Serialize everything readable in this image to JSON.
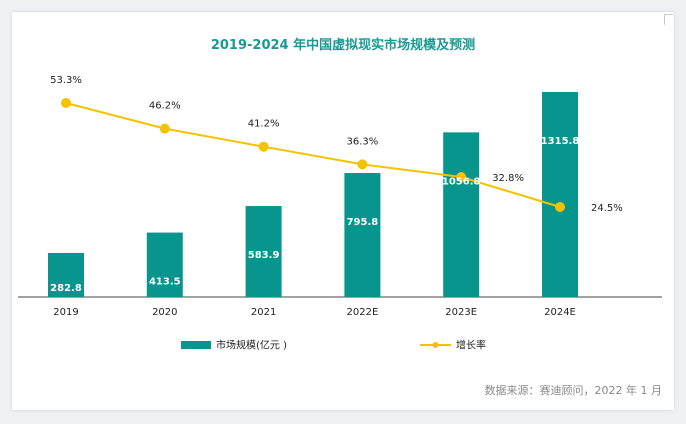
{
  "chart_data": {
    "type": "bar",
    "title": "2019-2024 年中国虚拟现实市场规模及预测",
    "categories": [
      "2019",
      "2020",
      "2021",
      "2022E",
      "2023E",
      "2024E"
    ],
    "series": [
      {
        "name": "市场规模(亿元 )",
        "type": "bar",
        "color": "#07958d",
        "values": [
          282.8,
          413.5,
          583.9,
          795.8,
          1056.8,
          1315.8
        ],
        "labels": [
          "282.8",
          "413.5",
          "583.9",
          "795.8",
          "1056.8",
          "1315.8"
        ]
      },
      {
        "name": "增长率",
        "type": "line",
        "color": "#f3c200",
        "values": [
          53.3,
          46.2,
          41.2,
          36.3,
          32.8,
          24.5
        ],
        "labels": [
          "53.3%",
          "46.2%",
          "41.2%",
          "36.3%",
          "32.8%",
          "24.5%"
        ]
      }
    ],
    "bar_axis_range": [
      0,
      1400
    ],
    "line_axis_range": [
      10,
      60
    ],
    "legend_position": "bottom",
    "grid": false
  },
  "source": "数据来源：赛迪顾问，2022 年 1 月"
}
